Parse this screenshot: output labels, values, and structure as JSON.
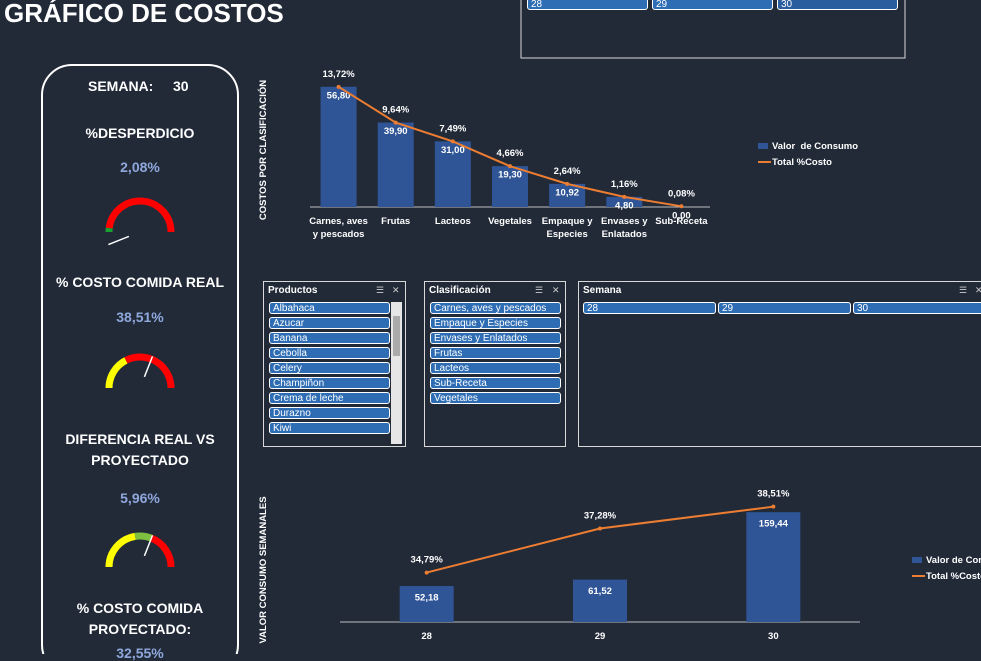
{
  "header": {
    "title": "GRÁFICO DE COSTOS"
  },
  "top_slicer": {
    "items": [
      "28",
      "29",
      "30"
    ]
  },
  "kpi_panel": {
    "semana_label": "SEMANA:",
    "semana_value": "30",
    "kpis": [
      {
        "label": "%DESPERDICIO",
        "value": "2,08%"
      },
      {
        "label": "% COSTO COMIDA REAL",
        "value": "38,51%"
      },
      {
        "label": "DIFERENCIA REAL VS PROYECTADO",
        "value": "5,96%"
      },
      {
        "label": "% COSTO COMIDA PROYECTADO:",
        "value": "32,55%"
      }
    ]
  },
  "slicers": [
    {
      "title": "Productos",
      "items": [
        "Albahaca",
        "Azucar",
        "Banana",
        "Cebolla",
        "Celery",
        "Champiñon",
        "Crema de leche",
        "Durazno",
        "Kiwi"
      ]
    },
    {
      "title": "Clasificación",
      "items": [
        "Carnes, aves y pescados",
        "Empaque y Especies",
        "Envases y Enlatados",
        "Frutas",
        "Lacteos",
        "Sub-Receta",
        "Vegetales"
      ]
    },
    {
      "title": "Semana",
      "items": [
        "28",
        "29",
        "30"
      ]
    }
  ],
  "chart_data": [
    {
      "type": "bar",
      "y_label": "COSTOS POR CLASIFICACIÓN",
      "legend": "right",
      "categories": [
        "Carnes, aves y pescados",
        "Frutas",
        "Lacteos",
        "Vegetales",
        "Empaque y Especies",
        "Envases y Enlatados",
        "Sub-Receta"
      ],
      "ylim": [
        0,
        60
      ],
      "y2lim": [
        0,
        14.5
      ],
      "series": [
        {
          "name": "Valor  de Consumo",
          "color": "#2f5597",
          "values": [
            56.8,
            39.9,
            31.0,
            19.3,
            10.92,
            4.8,
            0.0
          ],
          "value_labels": [
            "56,80",
            "39,90",
            "31,00",
            "19,30",
            "10,92",
            "4,80",
            "0,00"
          ]
        },
        {
          "name": "Total %Costo",
          "color": "#ed7d31",
          "type": "line",
          "axis": "y2",
          "values": [
            13.72,
            9.64,
            7.49,
            4.66,
            2.64,
            1.16,
            0.08
          ],
          "value_labels": [
            "13,72%",
            "9,64%",
            "7,49%",
            "4,66%",
            "2,64%",
            "1,16%",
            "0,08%"
          ]
        }
      ]
    },
    {
      "type": "bar",
      "y_label": "VALOR CONSUMO SEMANALES",
      "legend": "right",
      "categories": [
        "28",
        "29",
        "30"
      ],
      "ylim": [
        0,
        180
      ],
      "y2lim": [
        32,
        39
      ],
      "series": [
        {
          "name": "Valor de Consumo",
          "color": "#2f5597",
          "values": [
            52.18,
            61.52,
            159.44
          ],
          "value_labels": [
            "52,18",
            "61,52",
            "159,44"
          ]
        },
        {
          "name": "Total %Costo",
          "color": "#ed7d31",
          "type": "line",
          "axis": "y2",
          "values": [
            34.79,
            37.28,
            38.51
          ],
          "value_labels": [
            "34,79%",
            "37,28%",
            "38,51%"
          ]
        }
      ]
    }
  ]
}
